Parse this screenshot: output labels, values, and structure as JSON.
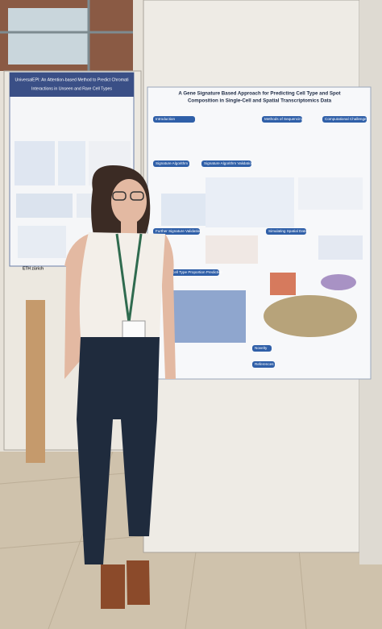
{
  "left_poster": {
    "title_lines": [
      "UniversalEPI: An Attention-based Method to Predict Chromati",
      "Interactions in Unseen and Rare Cell Types"
    ],
    "footer": "ETH zürich"
  },
  "right_poster": {
    "title_lines": [
      "A Gene Signature Based Approach for Predicting Cell Type and Spot",
      "Composition in Single-Cell and Spatial Transcriptomics Data"
    ],
    "sections": [
      "Introduction",
      "Methods of Sequencing",
      "Computational Challenge",
      "Signature Algorithm",
      "Signature Algorithm Validation",
      "Further Signature Validation",
      "Simulating Spatial Data",
      "Cell Type Proportion Prediction",
      "Novelty",
      "References"
    ]
  }
}
